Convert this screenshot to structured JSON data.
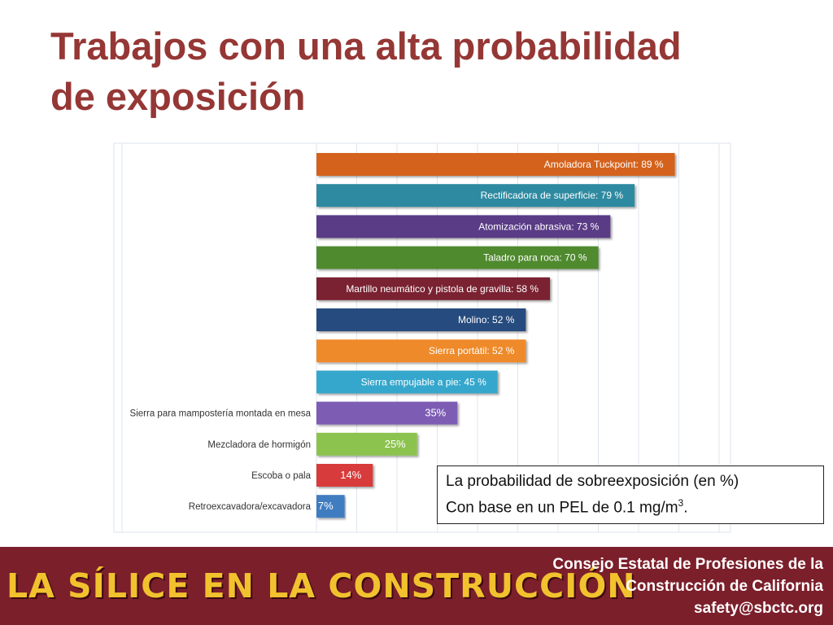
{
  "slide": {
    "title_line1": "Trabajos con una alta probabilidad",
    "title_line2": "de exposición"
  },
  "note": {
    "line1": "La probabilidad de sobreexposición (en %)",
    "line2_prefix": "Con base en un PEL de 0.1 mg/m",
    "line2_sup": "3",
    "line2_suffix": "."
  },
  "footer": {
    "brand": "LA SÍLICE EN LA CONSTRUCCIÓN",
    "org_line1": "Consejo Estatal de Profesiones de la",
    "org_line2": "Construcción de California",
    "org_line3": "safety@sbctc.org"
  },
  "colors": {
    "title": "#953735",
    "footer_bg": "#7b1f2b",
    "footer_brand": "#f2c12e"
  },
  "chart_data": {
    "type": "bar",
    "orientation": "horizontal",
    "title": "",
    "xlabel": "",
    "ylabel": "",
    "xlim": [
      0,
      100
    ],
    "grid": true,
    "bars": [
      {
        "category": "",
        "value": 89,
        "label": "Amoladora Tuckpoint: 89 %",
        "label_inside": true,
        "color": "#d4621a"
      },
      {
        "category": "",
        "value": 79,
        "label": "Rectificadora de superficie: 79 %",
        "label_inside": true,
        "color": "#2f8aa0"
      },
      {
        "category": "",
        "value": 73,
        "label": "Atomización abrasiva: 73 %",
        "label_inside": true,
        "color": "#5a3b86"
      },
      {
        "category": "",
        "value": 70,
        "label": "Taladro para roca: 70 %",
        "label_inside": true,
        "color": "#4f8a2e"
      },
      {
        "category": "",
        "value": 58,
        "label": "Martillo neumático y pistola de gravilla: 58 %",
        "label_inside": true,
        "color": "#7a2430"
      },
      {
        "category": "",
        "value": 52,
        "label": "Molino: 52 %",
        "label_inside": true,
        "color": "#254c7e"
      },
      {
        "category": "",
        "value": 52,
        "label": "Sierra portátil: 52 %",
        "label_inside": true,
        "color": "#ef8a2b"
      },
      {
        "category": "",
        "value": 45,
        "label": "Sierra empujable a pie: 45 %",
        "label_inside": true,
        "color": "#35a7cc"
      },
      {
        "category": "Sierra para mampostería montada en mesa",
        "value": 35,
        "label": "35%",
        "label_inside": false,
        "color": "#7d5bb4"
      },
      {
        "category": "Mezcladora de hormigón",
        "value": 25,
        "label": "25%",
        "label_inside": false,
        "color": "#8cc350"
      },
      {
        "category": "Escoba o pala",
        "value": 14,
        "label": "14%",
        "label_inside": false,
        "color": "#d83b3a"
      },
      {
        "category": "Retroexcavadora/excavadora",
        "value": 7,
        "label": "7%",
        "label_inside": false,
        "color": "#3f7cc0"
      }
    ]
  }
}
